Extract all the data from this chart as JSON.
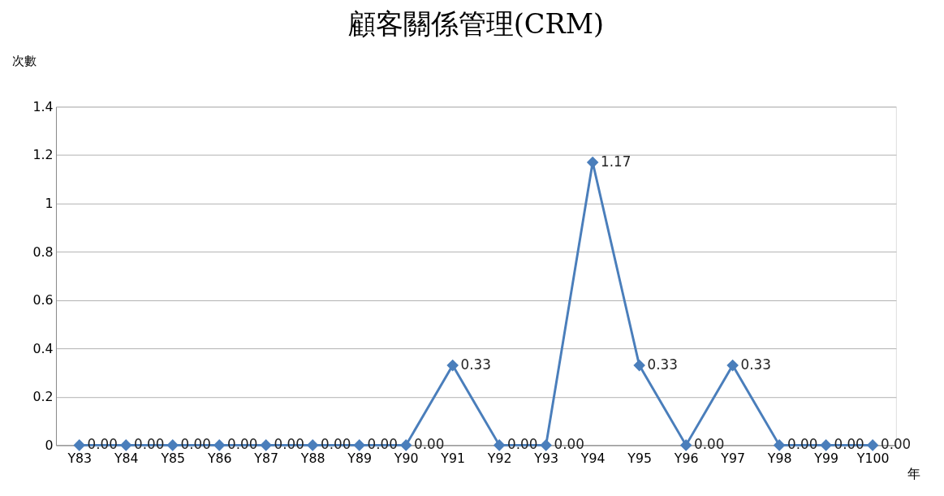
{
  "chart_data": {
    "type": "line",
    "title": "顧客關係管理(CRM)",
    "ylabel": "次數",
    "xlabel": "年",
    "categories": [
      "Y83",
      "Y84",
      "Y85",
      "Y86",
      "Y87",
      "Y88",
      "Y89",
      "Y90",
      "Y91",
      "Y92",
      "Y93",
      "Y94",
      "Y95",
      "Y96",
      "Y97",
      "Y98",
      "Y99",
      "Y100"
    ],
    "series": [
      {
        "color": "#4a7ebb",
        "values": [
          0,
          0,
          0,
          0,
          0,
          0,
          0,
          0,
          0.33,
          0,
          0,
          1.17,
          0.33,
          0,
          0.33,
          0,
          0,
          0
        ],
        "value_labels": [
          "0.00",
          "0.00",
          "0.00",
          "0.00",
          "0.00",
          "0.00",
          "0.00",
          "0.00",
          "0.33",
          "0.00",
          "0.00",
          "1.17",
          "0.33",
          "0.00",
          "0.33",
          "0.00",
          "0.00",
          "0.00"
        ]
      }
    ],
    "ylim": [
      0,
      1.4
    ],
    "yticks": [
      0,
      0.2,
      0.4,
      0.6,
      0.8,
      1,
      1.2,
      1.4
    ],
    "grid": "y",
    "marker": "diamond",
    "line_style": "solid"
  }
}
